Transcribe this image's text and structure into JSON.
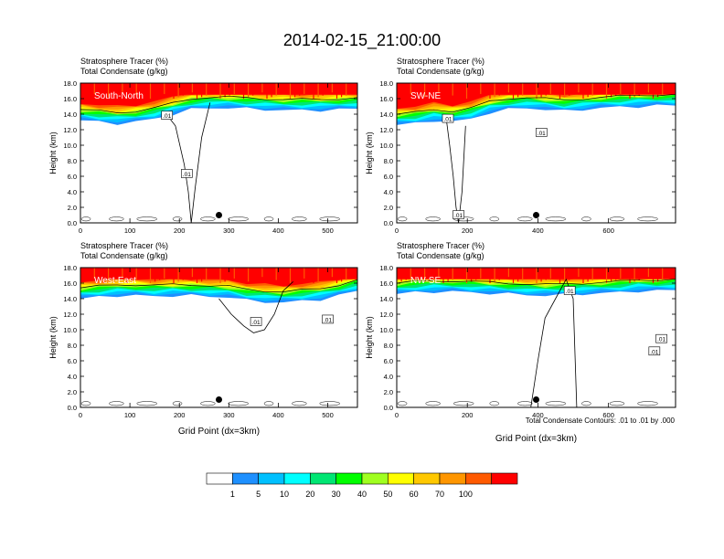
{
  "figure": {
    "title": "2014-02-15_21:00:00",
    "contour_note": "Total Condensate Contours: .01 to .01 by .000",
    "colorbar": {
      "levels": [
        "1",
        "5",
        "10",
        "20",
        "30",
        "40",
        "50",
        "60",
        "70",
        "100"
      ],
      "colors": [
        "#ffffff",
        "#1e90ff",
        "#00c0ff",
        "#00ffff",
        "#00e673",
        "#00ff00",
        "#a0ff20",
        "#ffff00",
        "#ffc800",
        "#ff9600",
        "#ff5a00",
        "#ff0000"
      ]
    }
  },
  "chart_data": [
    {
      "type": "heatmap",
      "name": "South-North",
      "title_line1": "Stratosphere Tracer   (%)",
      "title_line2": "Total Condensate   (g/kg)",
      "ylabel": "Height (km)",
      "xlabel": "",
      "xlim": [
        0,
        560
      ],
      "ylim": [
        0,
        18
      ],
      "xticks": [
        "0",
        "100",
        "200",
        "300",
        "400",
        "500"
      ],
      "xtick_values": [
        0,
        100,
        200,
        300,
        400,
        500
      ],
      "yticks": [
        "0.0",
        "2.0",
        "4.0",
        "6.0",
        "8.0",
        "10.0",
        "12.0",
        "14.0",
        "16.0",
        "18.0"
      ],
      "contour_labels": [
        {
          "text": ".01",
          "x": 175,
          "y": 13.8
        },
        {
          "text": ".01",
          "x": 215,
          "y": 6.3
        }
      ],
      "marker": {
        "x": 280,
        "y": 1.0
      },
      "tracer_base_km": [
        13.2,
        13.0,
        12.8,
        13.0,
        13.4,
        14.0,
        14.6,
        14.8,
        14.8,
        14.7,
        14.6,
        14.5,
        14.5,
        14.5,
        14.6,
        14.7
      ],
      "contour_cell": {
        "x": [
          170,
          192,
          210,
          218,
          224,
          232,
          245,
          262
        ],
        "y": [
          14.3,
          12.5,
          7.5,
          4.0,
          0.0,
          4.5,
          11.0,
          15.5
        ]
      }
    },
    {
      "type": "heatmap",
      "name": "SW-NE",
      "title_line1": "Stratosphere Tracer   (%)",
      "title_line2": "Total Condensate   (g/kg)",
      "ylabel": "Height (km)",
      "xlabel": "",
      "xlim": [
        0,
        790
      ],
      "ylim": [
        0,
        18
      ],
      "xticks": [
        "0",
        "200",
        "400",
        "600"
      ],
      "xtick_values": [
        0,
        200,
        400,
        600
      ],
      "yticks": [
        "0.0",
        "2.0",
        "4.0",
        "6.0",
        "8.0",
        "10.0",
        "12.0",
        "14.0",
        "16.0",
        "18.0"
      ],
      "contour_labels": [
        {
          "text": ".01",
          "x": 145,
          "y": 13.4
        },
        {
          "text": ".01",
          "x": 410,
          "y": 11.6
        },
        {
          "text": ".01",
          "x": 175,
          "y": 1.0
        }
      ],
      "marker": {
        "x": 395,
        "y": 1.0
      },
      "tracer_base_km": [
        12.6,
        12.8,
        13.2,
        13.0,
        13.4,
        14.2,
        14.6,
        14.8,
        14.6,
        14.4,
        14.6,
        14.8,
        14.9,
        15.0,
        15.1,
        15.1
      ],
      "contour_cell": {
        "x": [
          140,
          150,
          160,
          168,
          175,
          185,
          195
        ],
        "y": [
          13.5,
          10.0,
          6.0,
          2.0,
          0.0,
          4.0,
          12.5
        ]
      }
    },
    {
      "type": "heatmap",
      "name": "West-East",
      "title_line1": "Stratosphere Tracer   (%)",
      "title_line2": "Total Condensate   (g/kg)",
      "ylabel": "Height (km)",
      "xlabel": "Grid Point (dx=3km)",
      "xlim": [
        0,
        560
      ],
      "ylim": [
        0,
        18
      ],
      "xticks": [
        "0",
        "100",
        "200",
        "300",
        "400",
        "500"
      ],
      "xtick_values": [
        0,
        100,
        200,
        300,
        400,
        500
      ],
      "yticks": [
        "0.0",
        "2.0",
        "4.0",
        "6.0",
        "8.0",
        "10.0",
        "12.0",
        "14.0",
        "16.0",
        "18.0"
      ],
      "contour_labels": [
        {
          "text": ".01",
          "x": 355,
          "y": 11.0
        },
        {
          "text": ".01",
          "x": 500,
          "y": 11.3
        }
      ],
      "marker": {
        "x": 280,
        "y": 1.0
      },
      "tracer_base_km": [
        14.0,
        14.2,
        14.4,
        14.4,
        14.3,
        14.4,
        14.4,
        14.3,
        14.2,
        13.8,
        13.6,
        13.5,
        13.7,
        13.9,
        14.4,
        15.0
      ],
      "contour_cell": {
        "x": [
          280,
          305,
          330,
          350,
          372,
          392,
          410,
          430
        ],
        "y": [
          14.0,
          12.0,
          10.5,
          9.6,
          10.0,
          12.0,
          15.0,
          16.2
        ]
      }
    },
    {
      "type": "heatmap",
      "name": "NW-SE",
      "title_line1": "Stratosphere Tracer   (%)",
      "title_line2": "Total Condensate   (g/kg)",
      "ylabel": "Height (km)",
      "xlabel": "Grid Point (dx=3km)",
      "xlim": [
        0,
        790
      ],
      "ylim": [
        0,
        18
      ],
      "xticks": [
        "0",
        "200",
        "400",
        "600"
      ],
      "xtick_values": [
        0,
        200,
        400,
        600
      ],
      "yticks": [
        "0.0",
        "2.0",
        "4.0",
        "6.0",
        "8.0",
        "10.0",
        "12.0",
        "14.0",
        "16.0",
        "18.0"
      ],
      "contour_labels": [
        {
          "text": ".01",
          "x": 490,
          "y": 15.0
        },
        {
          "text": ".01",
          "x": 750,
          "y": 8.8
        },
        {
          "text": ".01",
          "x": 730,
          "y": 7.2
        }
      ],
      "marker": {
        "x": 395,
        "y": 1.0
      },
      "tracer_base_km": [
        14.6,
        14.8,
        14.9,
        14.9,
        14.8,
        14.7,
        14.6,
        14.5,
        14.4,
        14.5,
        14.6,
        14.7,
        14.8,
        15.0,
        15.0,
        15.1
      ],
      "contour_cell": {
        "x": [
          380,
          400,
          420,
          450,
          480,
          500,
          510
        ],
        "y": [
          0.0,
          6.0,
          11.5,
          14.0,
          16.5,
          14.0,
          0.0
        ]
      }
    }
  ]
}
